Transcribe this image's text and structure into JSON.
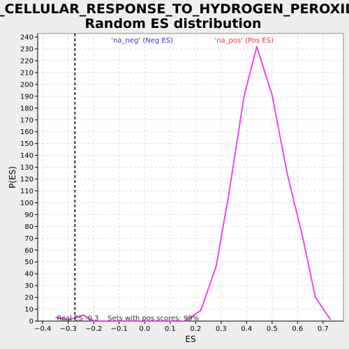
{
  "chart_data": {
    "type": "line",
    "title_lines": [
      "GO_CELLULAR_RESPONSE_TO_HYDROGEN_PEROXIDE:",
      "Random ES distribution"
    ],
    "xlabel": "ES",
    "ylabel": "P(ES)",
    "xlim": [
      -0.42,
      0.78
    ],
    "ylim": [
      0,
      243
    ],
    "x_ticks": [
      -0.4,
      -0.3,
      -0.2,
      -0.1,
      0.0,
      0.1,
      0.2,
      0.3,
      0.4,
      0.5,
      0.6,
      0.7
    ],
    "x_tick_labels": [
      "−0.4",
      "−0.3",
      "−0.2",
      "−0.1",
      "0.0",
      "0.1",
      "0.2",
      "0.3",
      "0.4",
      "0.5",
      "0.6",
      "0.7"
    ],
    "y_ticks": [
      0,
      10,
      20,
      30,
      40,
      50,
      60,
      70,
      80,
      90,
      100,
      110,
      120,
      130,
      140,
      150,
      160,
      170,
      180,
      190,
      200,
      210,
      220,
      230,
      240
    ],
    "grid": true,
    "series": [
      {
        "color": "#ee44ee",
        "x": [
          -0.35,
          -0.32,
          -0.3,
          -0.24,
          -0.2,
          -0.18,
          -0.1,
          -0.05,
          0.0,
          0.05,
          0.1,
          0.16,
          0.22,
          0.28,
          0.33,
          0.39,
          0.44,
          0.5,
          0.56,
          0.62,
          0.67,
          0.73
        ],
        "y": [
          3,
          2,
          1,
          5,
          0,
          0,
          0,
          0,
          0,
          0,
          0,
          0,
          9,
          46,
          107,
          190,
          232,
          191,
          124,
          71,
          20,
          1
        ]
      }
    ],
    "real_es": -0.274,
    "annotations": {
      "neg": {
        "text": "'na_neg' (Neg ES)",
        "color": "#3333cc",
        "x": -0.01
      },
      "pos": {
        "text": "'na_pos' (Pos ES)",
        "color": "#dd3333",
        "x": 0.39
      },
      "bottom": {
        "text": "Real ES -0.3    Sets with pos scores: 99%",
        "color": "#333333",
        "x": -0.345
      }
    }
  }
}
